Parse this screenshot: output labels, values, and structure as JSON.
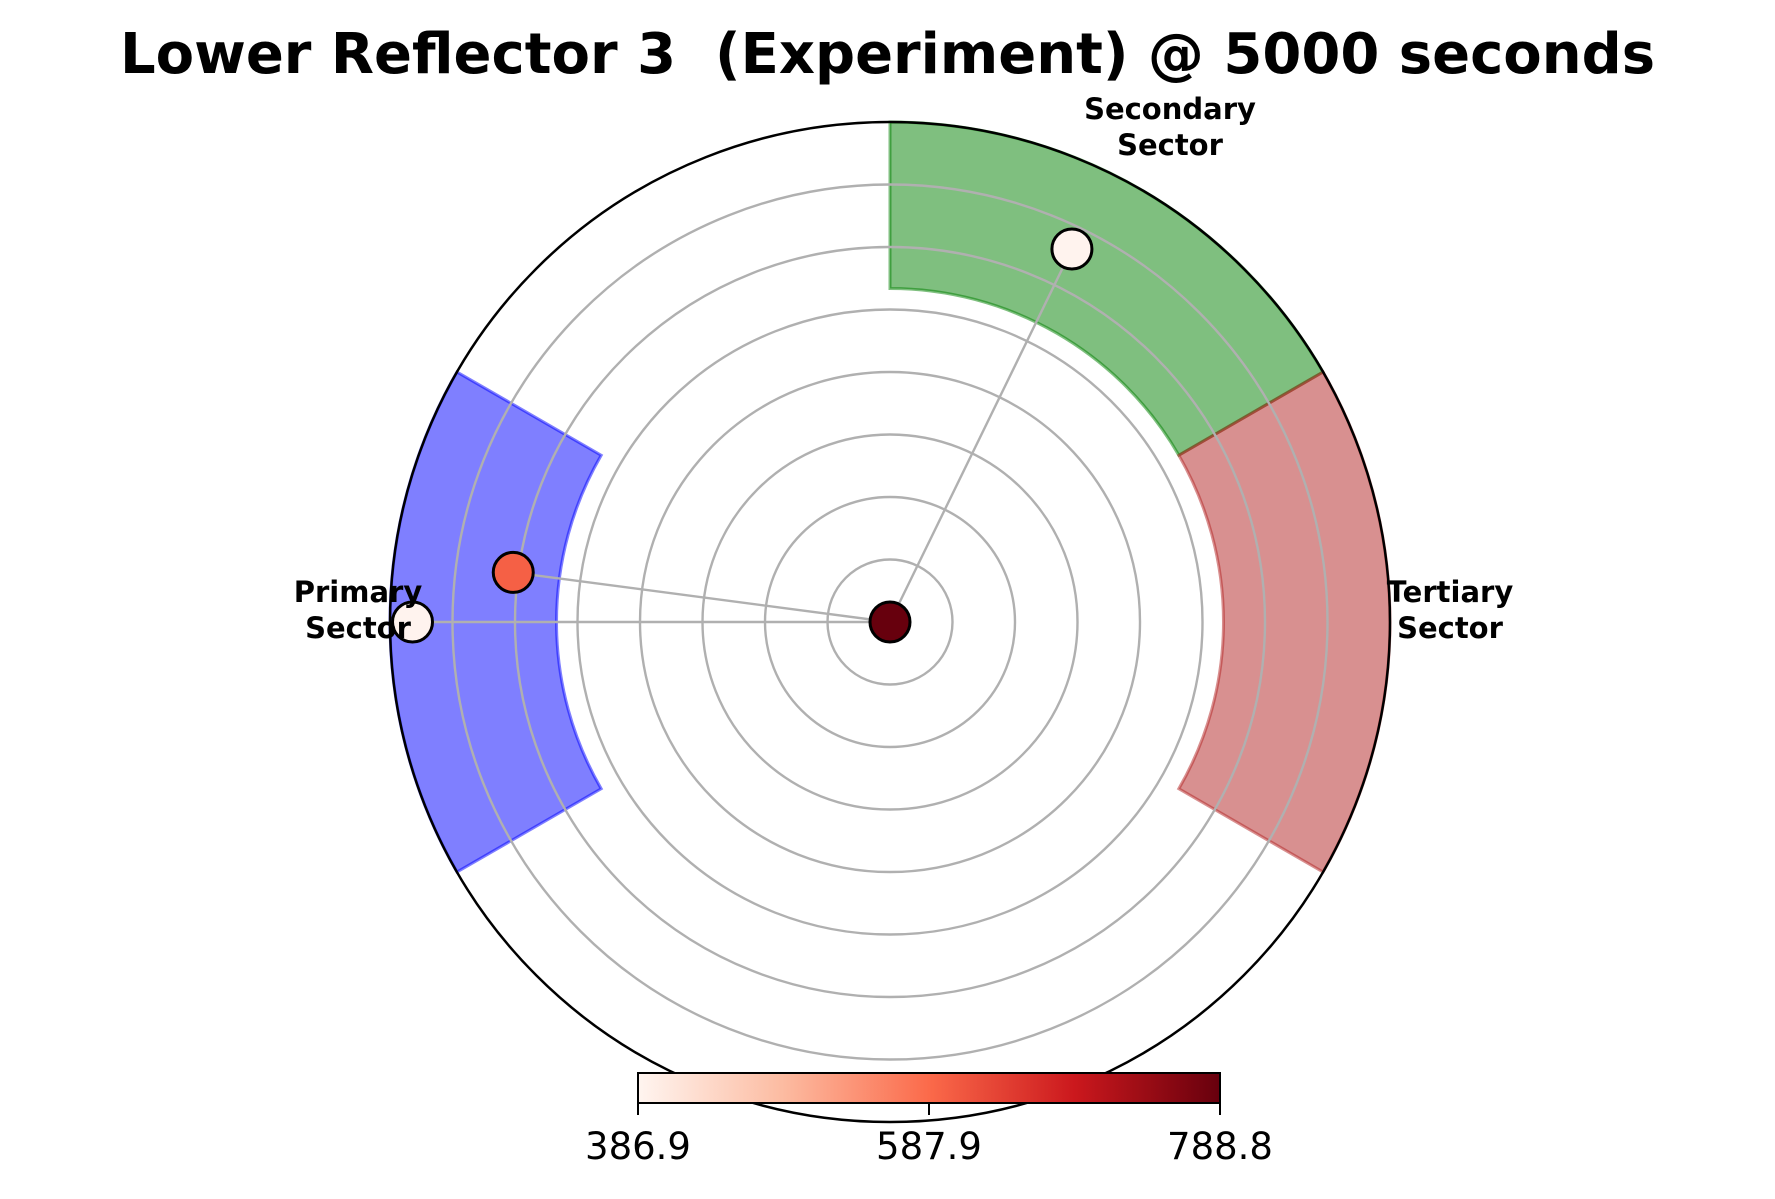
{
  "chart_data": {
    "type": "polar-scatter",
    "title": "Lower Reflector 3  (Experiment) @ 5000 seconds",
    "radial_rings": 8,
    "grid": true,
    "sectors": [
      {
        "name_line1": "Primary",
        "name_line2": "Sector",
        "theta_start_deg": 150,
        "theta_end_deg": 210,
        "r_inner": 0.667,
        "r_outer": 1.0,
        "color": "#0000ff"
      },
      {
        "name_line1": "Secondary",
        "name_line2": "Sector",
        "theta_start_deg": 30,
        "theta_end_deg": 90,
        "r_inner": 0.667,
        "r_outer": 1.0,
        "color": "#008000"
      },
      {
        "name_line1": "Tertiary",
        "name_line2": "Sector",
        "theta_start_deg": -30,
        "theta_end_deg": 30,
        "r_inner": 0.667,
        "r_outer": 1.0,
        "color": "#b22222"
      }
    ],
    "points": [
      {
        "r": 0.0,
        "theta_deg": 0,
        "value": 788.8
      },
      {
        "r": 0.955,
        "theta_deg": 180,
        "value": 390.0
      },
      {
        "r": 0.76,
        "theta_deg": 172.5,
        "value": 600.0
      },
      {
        "r": 0.83,
        "theta_deg": 64,
        "value": 390.0
      }
    ],
    "colormap": "Reds",
    "colorbar": {
      "min": 386.9,
      "max": 788.8,
      "ticks": [
        "386.9",
        "587.9",
        "788.8"
      ]
    }
  }
}
